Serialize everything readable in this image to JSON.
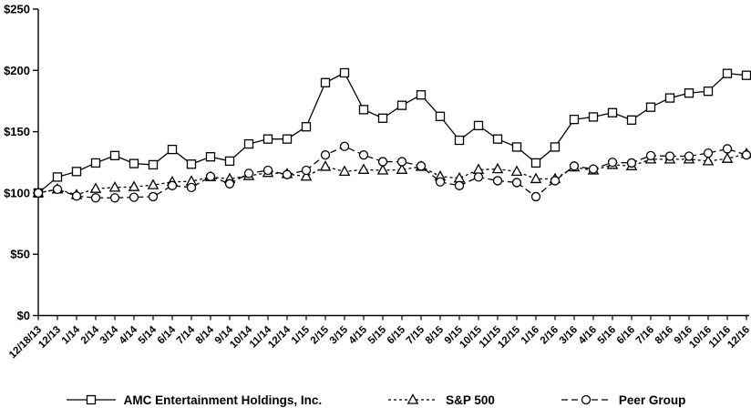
{
  "chart_data": {
    "type": "line",
    "title": "",
    "xlabel": "",
    "ylabel": "",
    "ylim": [
      0,
      250
    ],
    "y_ticks": [
      "$0",
      "$50",
      "$100",
      "$150",
      "$200",
      "$250"
    ],
    "y_tick_values": [
      0,
      50,
      100,
      150,
      200,
      250
    ],
    "grid": false,
    "legend_position": "bottom",
    "axis_color": "#000000",
    "background_color": "#ffffff",
    "categories": [
      "12/18/13",
      "12/13",
      "1/14",
      "2/14",
      "3/14",
      "4/14",
      "5/14",
      "6/14",
      "7/14",
      "8/14",
      "9/14",
      "10/14",
      "11/14",
      "12/14",
      "1/15",
      "2/15",
      "3/15",
      "4/15",
      "5/15",
      "6/15",
      "7/15",
      "8/15",
      "9/15",
      "10/15",
      "11/15",
      "12/15",
      "1/16",
      "2/16",
      "3/16",
      "4/16",
      "5/16",
      "6/16",
      "7/16",
      "8/16",
      "9/16",
      "10/16",
      "11/16",
      "12/16"
    ],
    "series": [
      {
        "name": "AMC Entertainment Holdings, Inc.",
        "marker": "square",
        "line_style": "solid",
        "color": "#000000",
        "values": [
          100,
          113,
          117.5,
          124.5,
          130.5,
          124,
          123,
          135.5,
          123.5,
          129.5,
          126,
          140,
          144,
          144,
          154,
          190,
          198,
          168,
          161,
          171.5,
          180,
          162.5,
          143,
          155,
          144,
          137.5,
          124.5,
          137.5,
          160,
          162,
          165.5,
          159.5,
          170,
          177.5,
          181.5,
          183,
          197.5,
          196
        ]
      },
      {
        "name": "S&P 500",
        "marker": "triangle",
        "line_style": "dashed-short",
        "color": "#000000",
        "values": [
          100,
          103,
          98.5,
          103.5,
          104.5,
          105,
          106.5,
          109,
          109.5,
          113,
          111.5,
          114,
          116.5,
          115.5,
          113.5,
          121.5,
          117.5,
          119,
          118.5,
          119,
          121.5,
          113.5,
          112,
          119,
          119.5,
          117.5,
          111.5,
          111.5,
          121,
          118.5,
          123,
          122,
          127.5,
          127.5,
          127.5,
          126,
          128,
          132
        ]
      },
      {
        "name": "Peer Group",
        "marker": "circle",
        "line_style": "dashed-long",
        "color": "#000000",
        "values": [
          100,
          103,
          97.5,
          96,
          96,
          96.5,
          97,
          106,
          104.5,
          113.5,
          107.5,
          116,
          118.5,
          115,
          118.5,
          131,
          138,
          131,
          125.5,
          125.5,
          122,
          109,
          106,
          113,
          110,
          108.5,
          97,
          110,
          122,
          119.5,
          125,
          124.5,
          130.5,
          130,
          130,
          132.5,
          136,
          131
        ]
      }
    ]
  }
}
